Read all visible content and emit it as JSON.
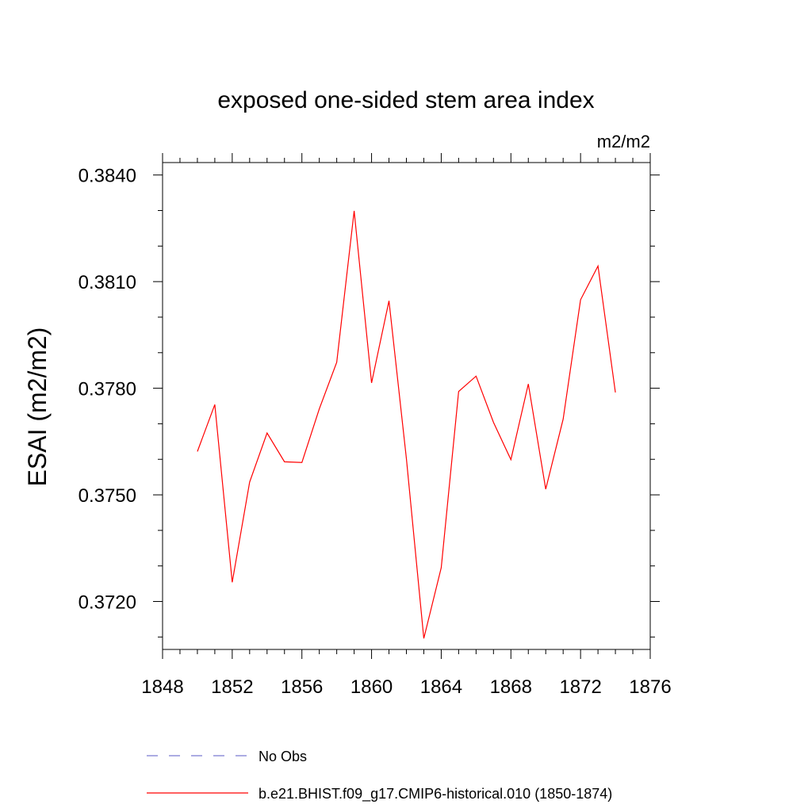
{
  "chart_data": {
    "type": "line",
    "title": "exposed one-sided stem area index",
    "units": "m2/m2",
    "ylabel": "ESAI  (m2/m2)",
    "xlabel": "",
    "xlim": [
      1848,
      1876
    ],
    "ylim": [
      0.37065,
      0.38435
    ],
    "xticks": [
      "1848",
      "1852",
      "1856",
      "1860",
      "1864",
      "1868",
      "1872",
      "1876"
    ],
    "yticks": [
      "0.3720",
      "0.3750",
      "0.3780",
      "0.3810",
      "0.3840"
    ],
    "grid": false,
    "legend_position": "bottom",
    "series": [
      {
        "name": "No Obs",
        "color": "#7b7bd0",
        "dash": "dashed",
        "x": [],
        "y": []
      },
      {
        "name": "b.e21.BHIST.f09_g17.CMIP6-historical.010 (1850-1874)",
        "color": "#ff0000",
        "dash": "solid",
        "x": [
          1850,
          1851,
          1852,
          1853,
          1854,
          1855,
          1856,
          1857,
          1858,
          1859,
          1860,
          1861,
          1862,
          1863,
          1864,
          1865,
          1866,
          1867,
          1868,
          1869,
          1870,
          1871,
          1872,
          1873,
          1874
        ],
        "y": [
          0.37622,
          0.37754,
          0.37254,
          0.37536,
          0.37674,
          0.37593,
          0.37591,
          0.37742,
          0.37873,
          0.38299,
          0.37815,
          0.38046,
          0.37602,
          0.37096,
          0.37295,
          0.37791,
          0.37834,
          0.37704,
          0.37599,
          0.37812,
          0.37516,
          0.37713,
          0.38049,
          0.38144,
          0.37788
        ]
      }
    ]
  }
}
